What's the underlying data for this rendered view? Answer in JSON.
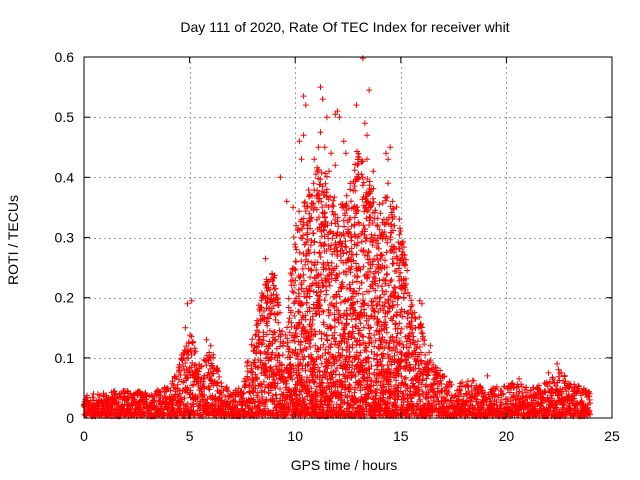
{
  "chart_data": {
    "type": "scatter",
    "title": "Day 111 of 2020, Rate Of TEC Index for receiver whit",
    "xlabel": "GPS time / hours",
    "ylabel": "ROTI / TECUs",
    "xlim": [
      0,
      25
    ],
    "ylim": [
      0,
      0.6
    ],
    "xticks": [
      0,
      5,
      10,
      15,
      20,
      25
    ],
    "xtick_labels": [
      "0",
      "5",
      "10",
      "15",
      "20",
      "25"
    ],
    "yticks": [
      0,
      0.1,
      0.2,
      0.3,
      0.4,
      0.5,
      0.6
    ],
    "ytick_labels": [
      "0",
      "0.1",
      "0.2",
      "0.3",
      "0.4",
      "0.5",
      "0.6"
    ],
    "grid": true,
    "marker": "+",
    "color": "#ff0000",
    "envelope_x": [
      0,
      1,
      2,
      3,
      4,
      4.5,
      5,
      5.5,
      6,
      6.5,
      7,
      7.5,
      8,
      8.5,
      9,
      9.5,
      10,
      10.5,
      11,
      11.5,
      12,
      12.5,
      13,
      13.5,
      14,
      14.5,
      15,
      15.5,
      16,
      16.5,
      17,
      17.5,
      18,
      18.5,
      19,
      19.5,
      20,
      20.5,
      21,
      21.5,
      22,
      22.5,
      23,
      23.5,
      24
    ],
    "envelope_y": [
      0.035,
      0.04,
      0.045,
      0.04,
      0.05,
      0.09,
      0.15,
      0.08,
      0.12,
      0.06,
      0.04,
      0.05,
      0.14,
      0.22,
      0.25,
      0.12,
      0.33,
      0.36,
      0.42,
      0.4,
      0.35,
      0.38,
      0.45,
      0.4,
      0.36,
      0.38,
      0.33,
      0.2,
      0.15,
      0.09,
      0.07,
      0.05,
      0.06,
      0.06,
      0.04,
      0.05,
      0.05,
      0.06,
      0.05,
      0.05,
      0.06,
      0.08,
      0.06,
      0.05,
      0.04
    ],
    "series": [
      {
        "name": "ROTI",
        "outliers": [
          {
            "x": 4.9,
            "y": 0.19
          },
          {
            "x": 5.1,
            "y": 0.195
          },
          {
            "x": 4.8,
            "y": 0.15
          },
          {
            "x": 5.8,
            "y": 0.13
          },
          {
            "x": 6.0,
            "y": 0.12
          },
          {
            "x": 8.6,
            "y": 0.265
          },
          {
            "x": 8.9,
            "y": 0.24
          },
          {
            "x": 9.3,
            "y": 0.4
          },
          {
            "x": 9.6,
            "y": 0.36
          },
          {
            "x": 9.9,
            "y": 0.35
          },
          {
            "x": 10.4,
            "y": 0.535
          },
          {
            "x": 10.5,
            "y": 0.52
          },
          {
            "x": 10.4,
            "y": 0.47
          },
          {
            "x": 10.3,
            "y": 0.43
          },
          {
            "x": 10.2,
            "y": 0.46
          },
          {
            "x": 10.7,
            "y": 0.37
          },
          {
            "x": 10.9,
            "y": 0.43
          },
          {
            "x": 11.2,
            "y": 0.55
          },
          {
            "x": 11.3,
            "y": 0.53
          },
          {
            "x": 11.5,
            "y": 0.5
          },
          {
            "x": 11.2,
            "y": 0.475
          },
          {
            "x": 11.1,
            "y": 0.45
          },
          {
            "x": 11.4,
            "y": 0.45
          },
          {
            "x": 11.7,
            "y": 0.44
          },
          {
            "x": 11.6,
            "y": 0.41
          },
          {
            "x": 11.5,
            "y": 0.38
          },
          {
            "x": 11.9,
            "y": 0.505
          },
          {
            "x": 12.0,
            "y": 0.51
          },
          {
            "x": 12.1,
            "y": 0.5
          },
          {
            "x": 11.9,
            "y": 0.42
          },
          {
            "x": 12.3,
            "y": 0.46
          },
          {
            "x": 12.4,
            "y": 0.44
          },
          {
            "x": 12.6,
            "y": 0.38
          },
          {
            "x": 12.9,
            "y": 0.35
          },
          {
            "x": 12.9,
            "y": 0.52
          },
          {
            "x": 13.2,
            "y": 0.598
          },
          {
            "x": 13.3,
            "y": 0.49
          },
          {
            "x": 13.5,
            "y": 0.545
          },
          {
            "x": 13.4,
            "y": 0.47
          },
          {
            "x": 13.4,
            "y": 0.43
          },
          {
            "x": 13.7,
            "y": 0.41
          },
          {
            "x": 13.6,
            "y": 0.38
          },
          {
            "x": 14.3,
            "y": 0.44
          },
          {
            "x": 14.4,
            "y": 0.43
          },
          {
            "x": 14.5,
            "y": 0.45
          },
          {
            "x": 14.4,
            "y": 0.39
          },
          {
            "x": 14.6,
            "y": 0.36
          },
          {
            "x": 14.2,
            "y": 0.33
          },
          {
            "x": 15.0,
            "y": 0.29
          },
          {
            "x": 15.2,
            "y": 0.22
          },
          {
            "x": 15.9,
            "y": 0.195
          },
          {
            "x": 16.0,
            "y": 0.19
          },
          {
            "x": 16.4,
            "y": 0.12
          },
          {
            "x": 19.1,
            "y": 0.07
          },
          {
            "x": 20.6,
            "y": 0.065
          },
          {
            "x": 22.0,
            "y": 0.075
          },
          {
            "x": 22.4,
            "y": 0.09
          },
          {
            "x": 22.6,
            "y": 0.075
          },
          {
            "x": 23.1,
            "y": 0.05
          }
        ]
      }
    ]
  }
}
